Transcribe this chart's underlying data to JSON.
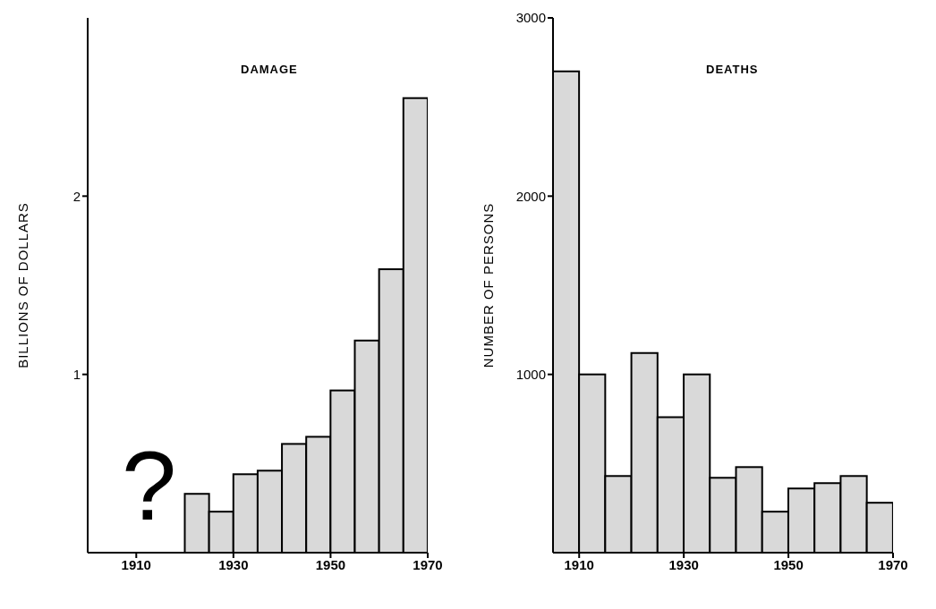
{
  "chart_data": [
    {
      "type": "histogram",
      "title": "DAMAGE",
      "ylabel": "BILLIONS OF DOLLARS",
      "bins": [
        1920,
        1925,
        1930,
        1935,
        1940,
        1945,
        1950,
        1955,
        1960,
        1965,
        1970
      ],
      "values": [
        0.33,
        0.23,
        0.44,
        0.46,
        0.61,
        0.65,
        0.91,
        1.19,
        1.59,
        2.55
      ],
      "color": "#d9d9d9",
      "xlim": [
        1900,
        1970
      ],
      "xticks": [
        1910,
        1930,
        1950,
        1970
      ],
      "ylim": [
        0,
        3
      ],
      "yticks": [
        1,
        2
      ],
      "annotations": [
        "?"
      ]
    },
    {
      "type": "histogram",
      "title": "DEATHS",
      "ylabel": "NUMBER OF PERSONS",
      "bins": [
        1905,
        1910,
        1915,
        1920,
        1925,
        1930,
        1935,
        1940,
        1945,
        1950,
        1955,
        1960,
        1965,
        1970
      ],
      "values": [
        2700,
        1000,
        430,
        1120,
        760,
        1000,
        420,
        480,
        230,
        360,
        390,
        430,
        280
      ],
      "color": "#d9d9d9",
      "xlim": [
        1905,
        1970
      ],
      "xticks": [
        1910,
        1930,
        1950,
        1970
      ],
      "ylim": [
        0,
        3000
      ],
      "yticks": [
        1000,
        2000,
        3000
      ]
    }
  ]
}
